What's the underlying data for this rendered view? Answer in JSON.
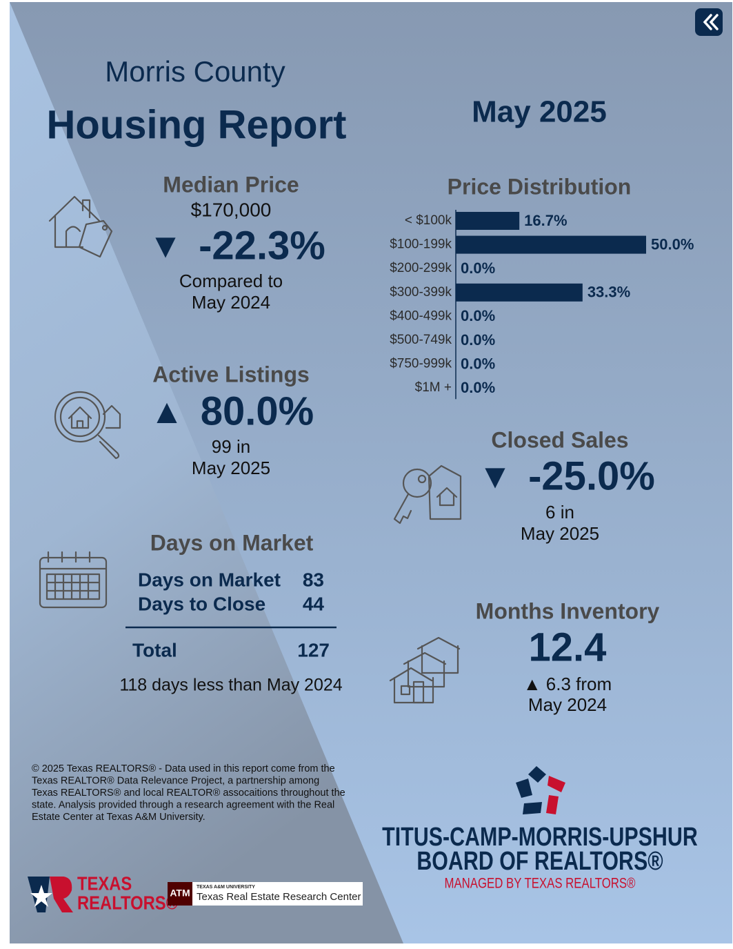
{
  "header": {
    "county": "Morris County",
    "title": "Housing Report",
    "period": "May 2025"
  },
  "median_price": {
    "title": "Median Price",
    "value": "$170,000",
    "arrow": "▼",
    "change": "-22.3%",
    "compare_line1": "Compared to",
    "compare_line2": "May 2024"
  },
  "price_distribution": {
    "type": "bar",
    "title": "Price Distribution",
    "categories": [
      "< $100k",
      "$100-199k",
      "$200-299k",
      "$300-399k",
      "$400-499k",
      "$500-749k",
      "$750-999k",
      "$1M +"
    ],
    "values": [
      16.7,
      50.0,
      0.0,
      33.3,
      0.0,
      0.0,
      0.0,
      0.0
    ],
    "value_labels": [
      "16.7%",
      "50.0%",
      "0.0%",
      "33.3%",
      "0.0%",
      "0.0%",
      "0.0%",
      "0.0%"
    ],
    "xlim": [
      0,
      50
    ],
    "color": "#0b2a4e"
  },
  "active_listings": {
    "title": "Active Listings",
    "arrow": "▲",
    "change": "80.0%",
    "line1": "99 in",
    "line2": "May 2025"
  },
  "closed_sales": {
    "title": "Closed Sales",
    "arrow": "▼",
    "change": "-25.0%",
    "line1": "6 in",
    "line2": "May 2025"
  },
  "days_on_market": {
    "title": "Days on Market",
    "rows": [
      [
        "Days on Market",
        "83"
      ],
      [
        "Days to Close",
        "44"
      ]
    ],
    "total": [
      "Total",
      "127"
    ],
    "note": "118 days less than May 2024"
  },
  "months_inventory": {
    "title": "Months Inventory",
    "value": "12.4",
    "line1": "▲ 6.3 from",
    "line2": "May 2024"
  },
  "footer": {
    "copyright_lines": [
      "© 2025 Texas REALTORS® - Data used in this report come from the",
      "Texas REALTOR® Data Relevance Project, a partnership among",
      "Texas REALTORS® and local REALTOR® assocaitions throughout the",
      "state. Analysis provided through a research agreement with the Real",
      "Estate Center at Texas A&M University."
    ],
    "texas_realtors": [
      "TEXAS",
      "REALTORS®"
    ],
    "tamu_small": "TEXAS A&M UNIVERSITY",
    "tamu_center": "Texas Real Estate Research Center",
    "board": [
      "TITUS-CAMP-MORRIS-UPSHUR",
      "BOARD OF REALTORS®",
      "MANAGED BY TEXAS REALTORS®"
    ]
  }
}
